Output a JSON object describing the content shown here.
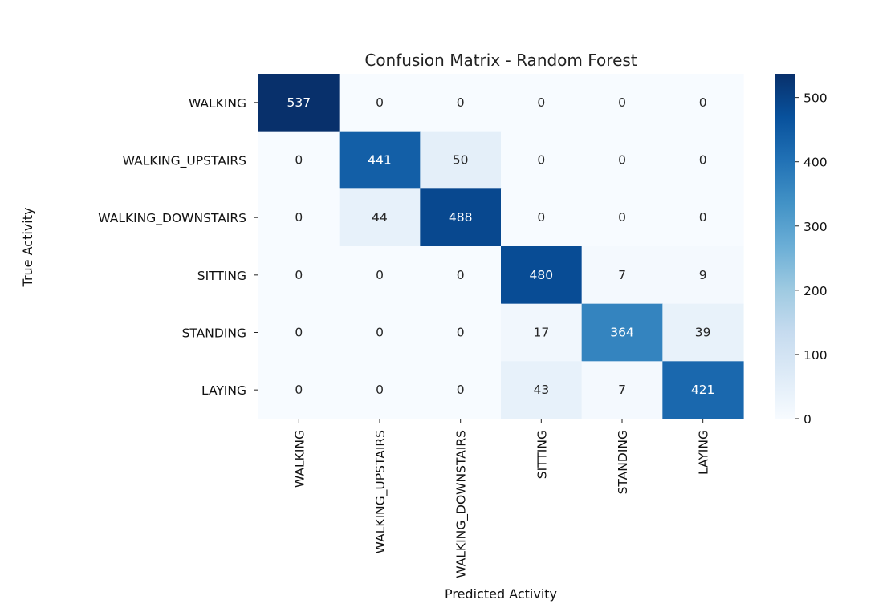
{
  "chart_data": {
    "type": "heatmap",
    "title": "Confusion Matrix - Random Forest",
    "xlabel": "Predicted Activity",
    "ylabel": "True Activity",
    "row_labels": [
      "WALKING",
      "WALKING_UPSTAIRS",
      "WALKING_DOWNSTAIRS",
      "SITTING",
      "STANDING",
      "LAYING"
    ],
    "col_labels": [
      "WALKING",
      "WALKING_UPSTAIRS",
      "WALKING_DOWNSTAIRS",
      "SITTING",
      "STANDING",
      "LAYING"
    ],
    "values": [
      [
        537,
        0,
        0,
        0,
        0,
        0
      ],
      [
        0,
        441,
        50,
        0,
        0,
        0
      ],
      [
        0,
        44,
        488,
        0,
        0,
        0
      ],
      [
        0,
        0,
        0,
        480,
        7,
        9
      ],
      [
        0,
        0,
        0,
        17,
        364,
        39
      ],
      [
        0,
        0,
        0,
        43,
        7,
        421
      ]
    ],
    "colorbar": {
      "min": 0,
      "max": 537,
      "ticks": [
        "0",
        "100",
        "200",
        "300",
        "400",
        "500"
      ],
      "colormap": "Blues"
    }
  }
}
